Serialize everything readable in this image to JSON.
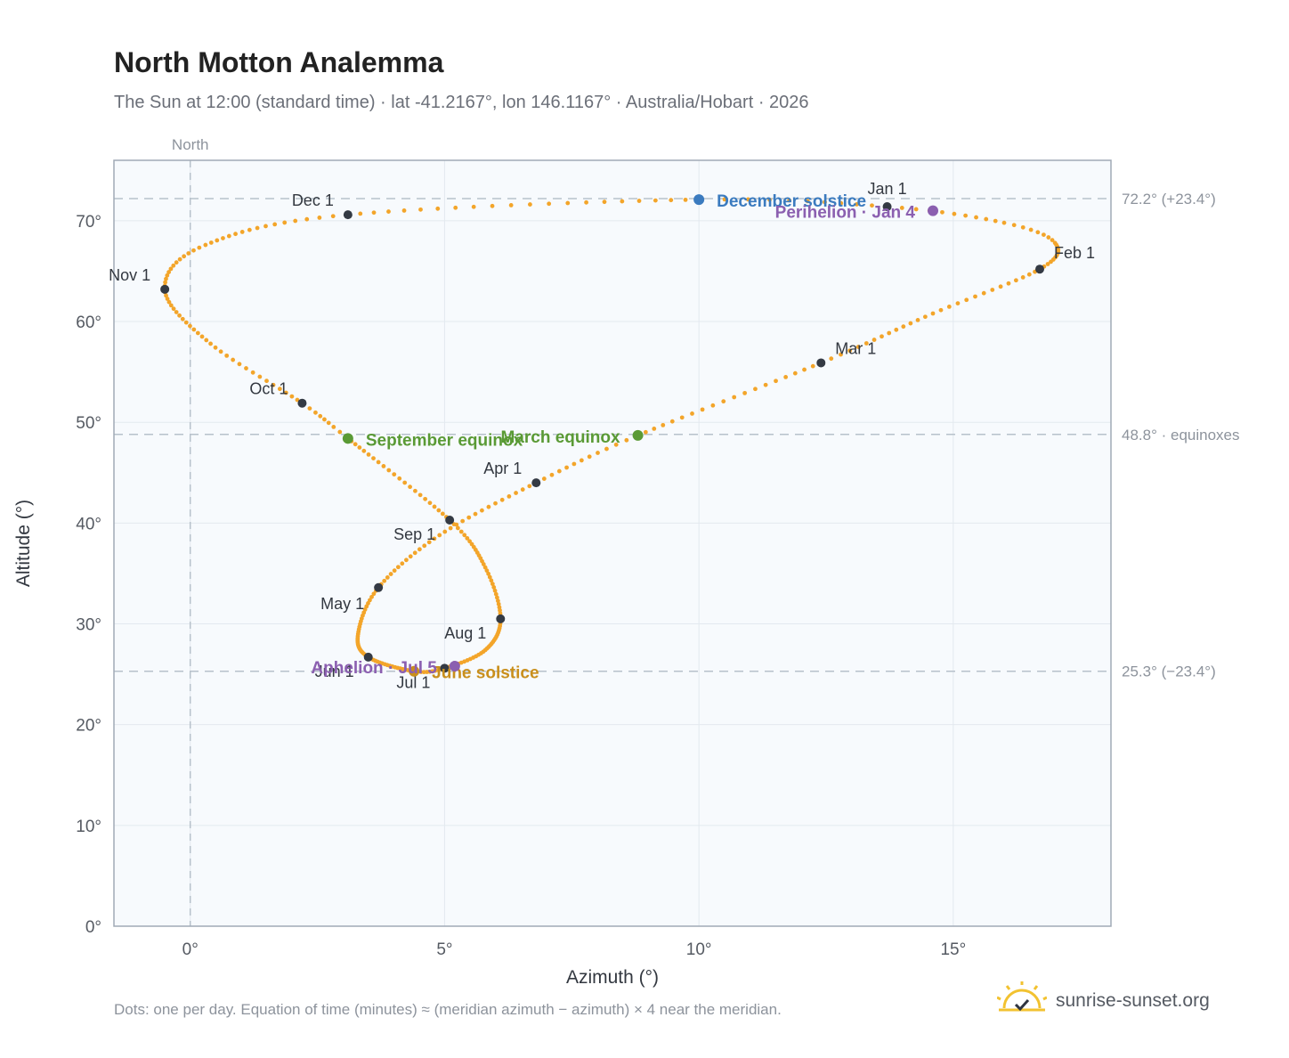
{
  "header": {
    "title": "North Motton Analemma",
    "subtitle": "The Sun at 12:00 (standard time) · lat -41.2167°, lon 146.1167° · Australia/Hobart · 2026"
  },
  "footer": {
    "note": "Dots: one per day. Equation of time (minutes) ≈ (meridian azimuth − azimuth) × 4 near the meridian.",
    "brand": "sunrise-sunset.org",
    "logo_icon": "sun-logo-icon"
  },
  "chart_data": {
    "type": "scatter",
    "xlabel": "Azimuth (°)",
    "ylabel": "Altitude (°)",
    "xlim": [
      -1.5,
      18.1
    ],
    "ylim": [
      0,
      76
    ],
    "xticks": [
      0,
      5,
      10,
      15
    ],
    "xtick_labels": [
      "0°",
      "5°",
      "10°",
      "15°"
    ],
    "yticks": [
      0,
      10,
      20,
      30,
      40,
      50,
      60,
      70
    ],
    "ytick_labels": [
      "0°",
      "10°",
      "20°",
      "30°",
      "40°",
      "50°",
      "60°",
      "70°"
    ],
    "grid": true,
    "meridian": {
      "x": 0,
      "label": "North"
    },
    "reference_lines": [
      {
        "y": 72.2,
        "label": "72.2° (+23.4°)"
      },
      {
        "y": 48.8,
        "label": "48.8° · equinoxes"
      },
      {
        "y": 25.3,
        "label": "25.3° (−23.4°)"
      }
    ],
    "path_color": "#f3a52a",
    "analemma_anchors": [
      {
        "day": 0,
        "x": 13.7,
        "y": 71.4
      },
      {
        "day": 10,
        "x": 16.0,
        "y": 69.8
      },
      {
        "day": 18,
        "x": 17.0,
        "y": 67.8
      },
      {
        "day": 31,
        "x": 16.7,
        "y": 65.2
      },
      {
        "day": 45,
        "x": 14.6,
        "y": 60.8
      },
      {
        "day": 59,
        "x": 12.4,
        "y": 55.9
      },
      {
        "day": 78,
        "x": 8.8,
        "y": 48.7
      },
      {
        "day": 90,
        "x": 6.8,
        "y": 44.0
      },
      {
        "day": 105,
        "x": 4.9,
        "y": 38.8
      },
      {
        "day": 120,
        "x": 3.7,
        "y": 33.6
      },
      {
        "day": 136,
        "x": 3.3,
        "y": 29.0
      },
      {
        "day": 151,
        "x": 3.5,
        "y": 26.7
      },
      {
        "day": 171,
        "x": 4.4,
        "y": 25.3
      },
      {
        "day": 181,
        "x": 5.0,
        "y": 25.6
      },
      {
        "day": 196,
        "x": 5.8,
        "y": 27.4
      },
      {
        "day": 212,
        "x": 6.1,
        "y": 30.5
      },
      {
        "day": 228,
        "x": 5.8,
        "y": 35.6
      },
      {
        "day": 243,
        "x": 5.1,
        "y": 40.3
      },
      {
        "day": 265,
        "x": 3.1,
        "y": 48.4
      },
      {
        "day": 273,
        "x": 2.2,
        "y": 51.9
      },
      {
        "day": 288,
        "x": 0.4,
        "y": 57.8
      },
      {
        "day": 304,
        "x": -0.5,
        "y": 63.2
      },
      {
        "day": 318,
        "x": 0.3,
        "y": 67.6
      },
      {
        "day": 334,
        "x": 3.1,
        "y": 70.6
      },
      {
        "day": 355,
        "x": 10.0,
        "y": 72.1
      },
      {
        "day": 365,
        "x": 13.7,
        "y": 71.4
      }
    ],
    "month_markers": [
      {
        "label": "Jan 1",
        "x": 13.7,
        "y": 71.4,
        "pos": "above"
      },
      {
        "label": "Feb 1",
        "x": 16.7,
        "y": 65.2,
        "pos": "right"
      },
      {
        "label": "Mar 1",
        "x": 12.4,
        "y": 55.9,
        "pos": "above-right"
      },
      {
        "label": "Apr 1",
        "x": 6.8,
        "y": 44.0,
        "pos": "above-left"
      },
      {
        "label": "May 1",
        "x": 3.7,
        "y": 33.6,
        "pos": "left"
      },
      {
        "label": "Jun 1",
        "x": 3.5,
        "y": 26.7,
        "pos": "below-left"
      },
      {
        "label": "Jul 1",
        "x": 5.0,
        "y": 25.6,
        "pos": "below-left"
      },
      {
        "label": "Aug 1",
        "x": 6.1,
        "y": 30.5,
        "pos": "below-left"
      },
      {
        "label": "Sep 1",
        "x": 5.1,
        "y": 40.3,
        "pos": "below-left"
      },
      {
        "label": "Oct 1",
        "x": 2.2,
        "y": 51.9,
        "pos": "above-left"
      },
      {
        "label": "Nov 1",
        "x": -0.5,
        "y": 63.2,
        "pos": "above-left"
      },
      {
        "label": "Dec 1",
        "x": 3.1,
        "y": 70.6,
        "pos": "above-left"
      }
    ],
    "events": [
      {
        "label": "December solstice",
        "x": 10.0,
        "y": 72.1,
        "color": "#3b7bbf",
        "pos": "right"
      },
      {
        "label": "Perihelion · Jan 4",
        "x": 14.6,
        "y": 71.0,
        "color": "#8b5fb0",
        "pos": "left"
      },
      {
        "label": "March equinox",
        "x": 8.8,
        "y": 48.7,
        "color": "#5a9a35",
        "pos": "left"
      },
      {
        "label": "September equinox",
        "x": 3.1,
        "y": 48.4,
        "color": "#5a9a35",
        "pos": "right"
      },
      {
        "label": "June solstice",
        "x": 4.4,
        "y": 25.3,
        "color": "#c98f1c",
        "pos": "right"
      },
      {
        "label": "Aphelion · Jul 5",
        "x": 5.2,
        "y": 25.8,
        "color": "#8b5fb0",
        "pos": "left"
      }
    ]
  }
}
